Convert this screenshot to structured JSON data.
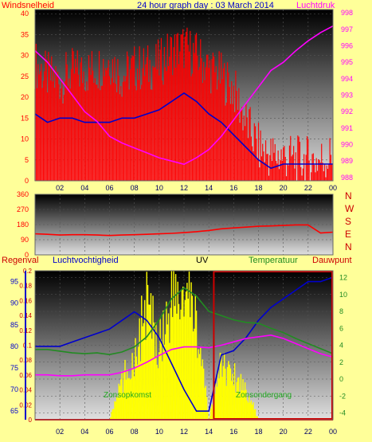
{
  "header": {
    "left_label": "Windsnelheid",
    "title": "24 hour graph day : 03 March 2014",
    "right_label": "Luchtdruk"
  },
  "compass": [
    "N",
    "W",
    "S",
    "E",
    "N"
  ],
  "bottom_header": {
    "regenval": "Regenval",
    "luchtvochtigheid": "Luchtvochtigheid",
    "uv": "UV",
    "temperatuur": "Temperatuur",
    "dauwpunt": "Dauwpunt"
  },
  "annotations": {
    "sunrise": "Zonsopkomst",
    "sunset": "Zonsondergang"
  },
  "colors": {
    "background": "#ffff99",
    "red": "#ff0000",
    "blue": "#0000cc",
    "magenta": "#ff00ff",
    "green": "#228b22",
    "yellow": "#ffff00",
    "darkred": "#cc0000",
    "black": "#000000"
  },
  "chart_data": [
    {
      "type": "line",
      "x_ticks": [
        "02",
        "04",
        "06",
        "08",
        "10",
        "12",
        "14",
        "16",
        "18",
        "20",
        "22",
        "00"
      ],
      "y_left_ticks": [
        "0",
        "5",
        "10",
        "15",
        "20",
        "25",
        "30",
        "35",
        "40"
      ],
      "y_right_ticks": [
        "988",
        "989",
        "990",
        "991",
        "992",
        "993",
        "994",
        "995",
        "996",
        "997",
        "998"
      ],
      "ylim_left": [
        0,
        41
      ],
      "ylim_right": [
        987.8,
        998.2
      ],
      "x": [
        0,
        1,
        2,
        3,
        4,
        5,
        6,
        7,
        8,
        9,
        10,
        11,
        12,
        13,
        14,
        15,
        16,
        17,
        18,
        19,
        20,
        21,
        22,
        23,
        24
      ],
      "series": [
        {
          "color": "#ff0000",
          "axis": "left",
          "style": "bars",
          "values": [
            28,
            25,
            24,
            26,
            26,
            27,
            29,
            25,
            27,
            27,
            28,
            31,
            32,
            30,
            27,
            25,
            22,
            14,
            8,
            6,
            6,
            5,
            5,
            5,
            6
          ]
        },
        {
          "color": "#0000cc",
          "axis": "left",
          "values": [
            16,
            14,
            15,
            15,
            14,
            14,
            14,
            15,
            15,
            16,
            17,
            19,
            21,
            19,
            16,
            14,
            11,
            8,
            5,
            3,
            4,
            4,
            4,
            4,
            4
          ]
        },
        {
          "color": "#ff00ff",
          "axis": "right",
          "values": [
            995.7,
            995,
            994,
            993,
            992,
            991.4,
            990.5,
            990.1,
            989.8,
            989.5,
            989.2,
            989,
            988.8,
            989.2,
            989.7,
            990.5,
            991.5,
            992.5,
            993.5,
            994.5,
            995,
            995.7,
            996.3,
            996.8,
            997.2
          ]
        }
      ]
    },
    {
      "type": "line",
      "x_ticks": [
        "02",
        "04",
        "06",
        "08",
        "10",
        "12",
        "14",
        "16",
        "18",
        "20",
        "22",
        "00"
      ],
      "y_ticks": [
        "0",
        "90",
        "180",
        "270",
        "360"
      ],
      "ylim": [
        0,
        360
      ],
      "x": [
        0,
        1,
        2,
        3,
        4,
        5,
        6,
        7,
        8,
        9,
        10,
        11,
        12,
        13,
        14,
        15,
        16,
        17,
        18,
        19,
        20,
        21,
        22,
        23,
        24
      ],
      "series": [
        {
          "color": "#ff0000",
          "values": [
            125,
            122,
            118,
            120,
            120,
            118,
            115,
            118,
            120,
            122,
            125,
            128,
            132,
            138,
            145,
            155,
            160,
            165,
            170,
            172,
            175,
            178,
            178,
            130,
            135
          ]
        }
      ]
    },
    {
      "type": "line",
      "x_ticks": [
        "02",
        "04",
        "06",
        "08",
        "10",
        "12",
        "14",
        "16",
        "18",
        "20",
        "22",
        "00"
      ],
      "y_humidity_ticks": [
        "65",
        "70",
        "75",
        "80",
        "85",
        "90",
        "95"
      ],
      "y_rain_ticks": [
        "0",
        "0.02",
        "0.04",
        "0.06",
        "0.08",
        "0.1",
        "0.12",
        "0.14",
        "0.16",
        "0.18",
        "0.2"
      ],
      "y_temp_ticks": [
        "-4",
        "-2",
        "0",
        "2",
        "4",
        "6",
        "8",
        "10",
        "12"
      ],
      "ylim_humidity": [
        63,
        97.5
      ],
      "ylim_temp": [
        -4.8,
        12.8
      ],
      "x": [
        0,
        1,
        2,
        3,
        4,
        5,
        6,
        7,
        8,
        9,
        10,
        11,
        12,
        13,
        14,
        15,
        16,
        17,
        18,
        19,
        20,
        21,
        22,
        23,
        24
      ],
      "series": [
        {
          "color": "#0000cc",
          "axis": "humidity",
          "values": [
            80,
            80,
            80,
            81,
            82,
            83,
            84,
            86,
            88,
            86,
            82,
            76,
            70,
            65,
            65,
            78,
            79,
            82,
            86,
            89,
            91,
            93,
            95,
            95,
            96
          ]
        },
        {
          "color": "#228b22",
          "axis": "temp",
          "values": [
            3.5,
            3.5,
            3.3,
            3.1,
            3.0,
            3.1,
            2.9,
            3.2,
            3.8,
            5.0,
            7.0,
            9.5,
            10.8,
            9.8,
            8.0,
            7.5,
            7.0,
            6.7,
            6.6,
            6.0,
            5.5,
            4.8,
            4.2,
            3.6,
            3.0
          ]
        },
        {
          "color": "#ff00ff",
          "axis": "temp",
          "values": [
            0.5,
            0.5,
            0.4,
            0.4,
            0.5,
            0.5,
            0.5,
            0.8,
            1.3,
            2.0,
            2.8,
            3.5,
            3.8,
            3.8,
            3.7,
            4.0,
            4.4,
            4.8,
            5.0,
            5.2,
            4.8,
            4.2,
            3.6,
            3.0,
            2.6
          ]
        },
        {
          "color": "#ffff00",
          "axis": "uv_scale",
          "style": "area",
          "values": [
            0,
            0,
            0,
            0,
            0,
            0,
            0,
            0.3,
            0.5,
            0.9,
            0.6,
            0.95,
            0.95,
            0.8,
            0,
            0.45,
            0.35,
            0.25,
            0,
            0,
            0,
            0,
            0,
            0,
            0
          ]
        }
      ]
    }
  ]
}
